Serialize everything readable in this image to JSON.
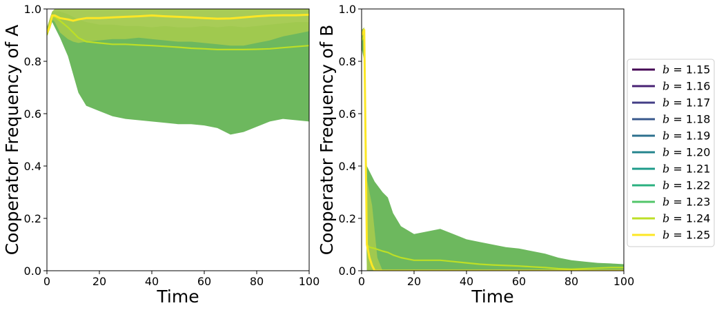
{
  "chart_data": [
    {
      "type": "line",
      "xlabel": "Time",
      "ylabel": "Cooperator Frequency of A",
      "xlim": [
        0,
        100
      ],
      "ylim": [
        0,
        1
      ],
      "xticks": [
        "0",
        "20",
        "40",
        "60",
        "80",
        "100"
      ],
      "yticks": [
        "0.0",
        "0.2",
        "0.4",
        "0.6",
        "0.8",
        "1.0"
      ],
      "grid": false,
      "series": [
        {
          "name": "$b = 1.24$",
          "color": "#bddf26",
          "x": [
            0,
            1,
            2,
            3,
            5,
            8,
            10,
            12,
            15,
            20,
            25,
            30,
            35,
            40,
            45,
            50,
            55,
            60,
            65,
            70,
            75,
            80,
            85,
            90,
            95,
            100
          ],
          "mean": [
            0.9,
            0.93,
            0.97,
            0.97,
            0.955,
            0.93,
            0.91,
            0.89,
            0.875,
            0.87,
            0.865,
            0.865,
            0.862,
            0.86,
            0.857,
            0.854,
            0.85,
            0.848,
            0.845,
            0.845,
            0.845,
            0.846,
            0.848,
            0.852,
            0.856,
            0.86
          ],
          "lower": [
            0.9,
            0.92,
            0.95,
            0.93,
            0.89,
            0.82,
            0.75,
            0.68,
            0.63,
            0.61,
            0.59,
            0.58,
            0.575,
            0.57,
            0.565,
            0.56,
            0.56,
            0.555,
            0.545,
            0.52,
            0.53,
            0.55,
            0.57,
            0.58,
            0.575,
            0.57
          ],
          "upper": [
            0.92,
            0.96,
            0.99,
            0.99,
            0.99,
            0.98,
            0.97,
            0.96,
            0.95,
            0.94,
            0.94,
            0.935,
            0.935,
            0.93,
            0.935,
            0.93,
            0.93,
            0.935,
            0.93,
            0.935,
            0.93,
            0.935,
            0.94,
            0.945,
            0.95,
            0.95
          ]
        },
        {
          "name": "$b = 1.25$",
          "color": "#fde725",
          "x": [
            0,
            1,
            2,
            3,
            5,
            8,
            10,
            12,
            15,
            20,
            25,
            30,
            35,
            40,
            45,
            50,
            55,
            60,
            65,
            70,
            75,
            80,
            85,
            90,
            95,
            100
          ],
          "mean": [
            0.91,
            0.93,
            0.975,
            0.975,
            0.965,
            0.96,
            0.955,
            0.96,
            0.965,
            0.965,
            0.968,
            0.97,
            0.972,
            0.975,
            0.972,
            0.97,
            0.968,
            0.965,
            0.963,
            0.964,
            0.968,
            0.972,
            0.975,
            0.976,
            0.976,
            0.978
          ],
          "lower": [
            0.9,
            0.92,
            0.96,
            0.95,
            0.91,
            0.885,
            0.875,
            0.87,
            0.875,
            0.88,
            0.885,
            0.885,
            0.89,
            0.885,
            0.88,
            0.875,
            0.875,
            0.87,
            0.865,
            0.86,
            0.86,
            0.87,
            0.88,
            0.895,
            0.905,
            0.915
          ],
          "upper": [
            0.93,
            0.96,
            0.99,
            1.0,
            1.0,
            1.0,
            1.0,
            1.0,
            1.0,
            1.0,
            1.0,
            1.0,
            1.0,
            1.0,
            1.0,
            1.0,
            1.0,
            1.0,
            1.0,
            1.0,
            1.0,
            1.0,
            1.0,
            1.0,
            1.0,
            1.0
          ]
        }
      ]
    },
    {
      "type": "line",
      "xlabel": "Time",
      "ylabel": "Cooperator Frequency of B",
      "xlim": [
        0,
        100
      ],
      "ylim": [
        0,
        1
      ],
      "xticks": [
        "0",
        "20",
        "40",
        "60",
        "80",
        "100"
      ],
      "yticks": [
        "0.0",
        "0.2",
        "0.4",
        "0.6",
        "0.8",
        "1.0"
      ],
      "grid": false,
      "series": [
        {
          "name": "$b = 1.24$",
          "color": "#bddf26",
          "x": [
            0,
            1,
            2,
            3,
            5,
            8,
            10,
            12,
            15,
            20,
            25,
            30,
            35,
            40,
            45,
            50,
            55,
            60,
            65,
            70,
            75,
            80,
            85,
            90,
            95,
            100
          ],
          "mean": [
            0.88,
            0.9,
            0.1,
            0.09,
            0.085,
            0.075,
            0.07,
            0.06,
            0.05,
            0.04,
            0.04,
            0.04,
            0.035,
            0.03,
            0.025,
            0.022,
            0.02,
            0.018,
            0.015,
            0.012,
            0.008,
            0.006,
            0.008,
            0.01,
            0.012,
            0.012
          ],
          "lower": [
            0.85,
            0.8,
            0.0,
            0.0,
            0.0,
            0.0,
            0.0,
            0.0,
            0.0,
            0.0,
            0.0,
            0.0,
            0.0,
            0.0,
            0.0,
            0.0,
            0.0,
            0.0,
            0.0,
            0.0,
            0.0,
            0.0,
            0.0,
            0.0,
            0.0,
            0.0
          ],
          "upper": [
            0.9,
            0.92,
            0.4,
            0.38,
            0.34,
            0.3,
            0.28,
            0.22,
            0.17,
            0.14,
            0.15,
            0.16,
            0.14,
            0.12,
            0.11,
            0.1,
            0.09,
            0.085,
            0.075,
            0.065,
            0.05,
            0.04,
            0.035,
            0.03,
            0.028,
            0.025
          ]
        },
        {
          "name": "$b = 1.25$",
          "color": "#fde725",
          "x": [
            0,
            1,
            2,
            3,
            4,
            5,
            6,
            8,
            10,
            15,
            20,
            25,
            30,
            35,
            40,
            45,
            50,
            55,
            60,
            65,
            70,
            75,
            80,
            85,
            90,
            95,
            100
          ],
          "mean": [
            0.9,
            0.92,
            0.1,
            0.05,
            0.02,
            0.0,
            0.0,
            0.0,
            0.0,
            0.0,
            0.0,
            0.0,
            0.0,
            0.0,
            0.0,
            0.0,
            0.0,
            0.0,
            0.0,
            0.0,
            0.0,
            0.0,
            0.0,
            0.0,
            0.0,
            0.0,
            0.0
          ],
          "lower": [
            0.89,
            0.9,
            0.0,
            0.0,
            0.0,
            0.0,
            0.0,
            0.0,
            0.0,
            0.0,
            0.0,
            0.0,
            0.0,
            0.0,
            0.0,
            0.0,
            0.0,
            0.0,
            0.0,
            0.0,
            0.0,
            0.0,
            0.0,
            0.0,
            0.0,
            0.0,
            0.0
          ],
          "upper": [
            0.92,
            0.93,
            0.35,
            0.3,
            0.25,
            0.15,
            0.05,
            0.0,
            0.0,
            0.0,
            0.0,
            0.0,
            0.0,
            0.0,
            0.0,
            0.0,
            0.0,
            0.0,
            0.0,
            0.0,
            0.0,
            0.0,
            0.0,
            0.0,
            0.0,
            0.0,
            0.0
          ]
        }
      ]
    }
  ],
  "legend": {
    "placement": "right",
    "entries": [
      {
        "label": "$b = 1.15$",
        "color": "#440154"
      },
      {
        "label": "$b = 1.16$",
        "color": "#482173"
      },
      {
        "label": "$b = 1.17$",
        "color": "#433e85"
      },
      {
        "label": "$b = 1.18$",
        "color": "#38588c"
      },
      {
        "label": "$b = 1.19$",
        "color": "#2d708e"
      },
      {
        "label": "$b = 1.20$",
        "color": "#25858e"
      },
      {
        "label": "$b = 1.21$",
        "color": "#1e9b8a"
      },
      {
        "label": "$b = 1.22$",
        "color": "#2ab07f"
      },
      {
        "label": "$b = 1.23$",
        "color": "#52c569"
      },
      {
        "label": "$b = 1.24$",
        "color": "#bddf26"
      },
      {
        "label": "$b = 1.25$",
        "color": "#fde725"
      }
    ]
  }
}
